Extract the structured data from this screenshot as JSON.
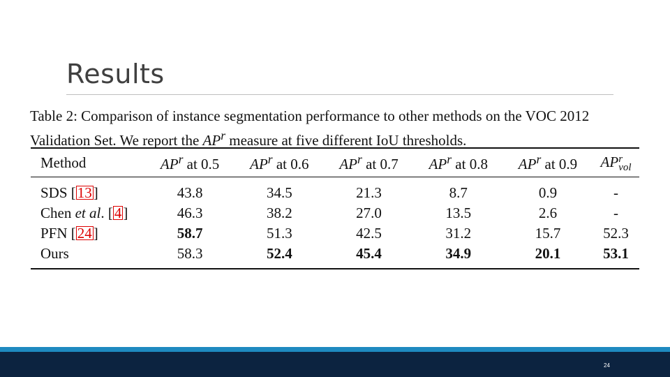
{
  "slide": {
    "title": "Results",
    "page_number": "24"
  },
  "caption": {
    "prefix": "Table 2: Comparison of instance segmentation performance to other methods on the VOC 2012 Validation Set. We report the ",
    "ap": "AP",
    "ap_sup": "r",
    "suffix": " measure at five different IoU thresholds."
  },
  "table": {
    "method_header": "Method",
    "ap_prefix": "AP",
    "ap_sup": "r",
    "ap_sub_vol": "vol",
    "thresholds": [
      " at 0.5",
      " at 0.6",
      " at 0.7",
      " at 0.8",
      " at 0.9"
    ],
    "rows": [
      {
        "name": "SDS [",
        "name_italic": "",
        "name_tail": "",
        "ref": "13",
        "close": "]",
        "values": [
          "43.8",
          "34.5",
          "21.3",
          "8.7",
          "0.9",
          "-"
        ]
      },
      {
        "name": "Chen ",
        "name_italic": "et al",
        "name_tail": ". [",
        "ref": "4",
        "close": "]",
        "values": [
          "46.3",
          "38.2",
          "27.0",
          "13.5",
          "2.6",
          "-"
        ]
      },
      {
        "name": "PFN [",
        "name_italic": "",
        "name_tail": "",
        "ref": "24",
        "close": "]",
        "values": [
          "58.7",
          "51.3",
          "42.5",
          "31.2",
          "15.7",
          "52.3"
        ]
      },
      {
        "name": "Ours",
        "name_italic": "",
        "name_tail": "",
        "ref": "",
        "close": "",
        "values": [
          "58.3",
          "52.4",
          "45.4",
          "34.9",
          "20.1",
          "53.1"
        ]
      }
    ]
  }
}
